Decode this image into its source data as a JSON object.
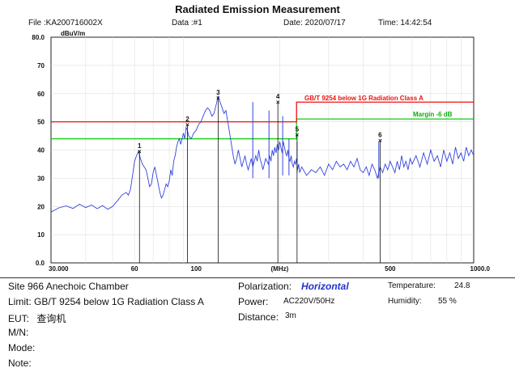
{
  "header": {
    "title": "Radiated Emission Measurement",
    "file": "File :KA200716002X",
    "data": "Data :#1",
    "date": "Date: 2020/07/17",
    "time": "Time: 14:42:54"
  },
  "info": {
    "site": "Site  966 Anechoic Chamber",
    "limit": "Limit:  GB/T 9254 below 1G Radiation Class A",
    "eut_label": "EUT:",
    "eut_value": "查询机",
    "mn": "M/N:",
    "mode": "Mode:",
    "note": "Note:",
    "polarization_label": "Polarization:",
    "polarization_value": "Horizontal",
    "power_label": "Power:",
    "power_value": "AC220V/50Hz",
    "distance_label": "Distance:",
    "distance_value": "3m",
    "temperature_label": "Temperature:",
    "temperature_value": "24.8",
    "humidity_label": "Humidity:",
    "humidity_value": "55 %"
  },
  "colors": {
    "trace": "#3344dd",
    "limit": "#ee1111",
    "margin": "#11cc11",
    "marker": "#111111"
  },
  "chart_data": {
    "type": "line",
    "xscale": "log",
    "xlim": [
      30,
      1000
    ],
    "ylim": [
      0,
      80
    ],
    "yunit": "dBuV/m",
    "xunit": "(MHz)",
    "xticks": [
      {
        "v": 30,
        "t": "30.000"
      },
      {
        "v": 60,
        "t": "60"
      },
      {
        "v": 100,
        "t": "100"
      },
      {
        "v": 200,
        "t": "(MHz)"
      },
      {
        "v": 500,
        "t": "500"
      },
      {
        "v": 1000,
        "t": "1000.0"
      }
    ],
    "yticks": [
      {
        "v": 80,
        "t": "80.0"
      },
      {
        "v": 70,
        "t": "70"
      },
      {
        "v": 60,
        "t": "60"
      },
      {
        "v": 50,
        "t": "50"
      },
      {
        "v": 40,
        "t": "40"
      },
      {
        "v": 30,
        "t": "30"
      },
      {
        "v": 20,
        "t": "20"
      },
      {
        "v": 10,
        "t": "10"
      },
      {
        "v": 0,
        "t": "0.0"
      }
    ],
    "limit_line": {
      "label": "GB/T 9254 below 1G Radiation Class A",
      "segments": [
        [
          30,
          230,
          50
        ],
        [
          230,
          1000,
          57
        ]
      ]
    },
    "margin_line": {
      "label": "Margin -6 dB",
      "segments": [
        [
          30,
          230,
          44
        ],
        [
          230,
          1000,
          51
        ]
      ]
    },
    "series": [
      {
        "points": [
          [
            30,
            18
          ],
          [
            32,
            19.5
          ],
          [
            34,
            20.2
          ],
          [
            36,
            19.3
          ],
          [
            38,
            20.8
          ],
          [
            40,
            19.6
          ],
          [
            42,
            20.5
          ],
          [
            44,
            19.2
          ],
          [
            46,
            20.3
          ],
          [
            48,
            19
          ],
          [
            50,
            20
          ],
          [
            52,
            22
          ],
          [
            54,
            24
          ],
          [
            56,
            25
          ],
          [
            57,
            24
          ],
          [
            58,
            26
          ],
          [
            59,
            31
          ],
          [
            60,
            36
          ],
          [
            61,
            38
          ],
          [
            62,
            39.5
          ],
          [
            63,
            37
          ],
          [
            64,
            35
          ],
          [
            65,
            34
          ],
          [
            66,
            33
          ],
          [
            67,
            30
          ],
          [
            68,
            27
          ],
          [
            69,
            28
          ],
          [
            70,
            32
          ],
          [
            71,
            34
          ],
          [
            72,
            31
          ],
          [
            73,
            28
          ],
          [
            74,
            25
          ],
          [
            75,
            23
          ],
          [
            76,
            24
          ],
          [
            77,
            26
          ],
          [
            78,
            28
          ],
          [
            79,
            27
          ],
          [
            80,
            29
          ],
          [
            81,
            33
          ],
          [
            82,
            31
          ],
          [
            83,
            36
          ],
          [
            84,
            38
          ],
          [
            85,
            41
          ],
          [
            86,
            43
          ],
          [
            87,
            44
          ],
          [
            88,
            42
          ],
          [
            90,
            46
          ],
          [
            91,
            44
          ],
          [
            92,
            48
          ],
          [
            93,
            47
          ],
          [
            94,
            45
          ],
          [
            96,
            44
          ],
          [
            98,
            46
          ],
          [
            100,
            47
          ],
          [
            102,
            49
          ],
          [
            104,
            50
          ],
          [
            106,
            52
          ],
          [
            108,
            54
          ],
          [
            110,
            55
          ],
          [
            112,
            54
          ],
          [
            114,
            52
          ],
          [
            116,
            53
          ],
          [
            118,
            56
          ],
          [
            120,
            59
          ],
          [
            122,
            57
          ],
          [
            124,
            55
          ],
          [
            126,
            53
          ],
          [
            128,
            54
          ],
          [
            130,
            50
          ],
          [
            132,
            46
          ],
          [
            134,
            42
          ],
          [
            136,
            38
          ],
          [
            138,
            35
          ],
          [
            140,
            37
          ],
          [
            142,
            40
          ],
          [
            144,
            37
          ],
          [
            146,
            34
          ],
          [
            148,
            36
          ],
          [
            150,
            38
          ],
          [
            152,
            35
          ],
          [
            154,
            33
          ],
          [
            156,
            35
          ],
          [
            158,
            37
          ],
          [
            160,
            34
          ],
          [
            162,
            36
          ],
          [
            164,
            38
          ],
          [
            166,
            36
          ],
          [
            168,
            40
          ],
          [
            170,
            37
          ],
          [
            172,
            35
          ],
          [
            174,
            33
          ],
          [
            176,
            35
          ],
          [
            178,
            37
          ],
          [
            180,
            36
          ],
          [
            182,
            35
          ],
          [
            184,
            38
          ],
          [
            186,
            36
          ],
          [
            188,
            40
          ],
          [
            190,
            38
          ],
          [
            192,
            41
          ],
          [
            194,
            39
          ],
          [
            196,
            42
          ],
          [
            198,
            40
          ],
          [
            200,
            43
          ],
          [
            202,
            41
          ],
          [
            204,
            39
          ],
          [
            206,
            43
          ],
          [
            208,
            41
          ],
          [
            210,
            39
          ],
          [
            212,
            38
          ],
          [
            214,
            40
          ],
          [
            216,
            37
          ],
          [
            218,
            36
          ],
          [
            220,
            38
          ],
          [
            222,
            35
          ],
          [
            224,
            34
          ],
          [
            226,
            36
          ],
          [
            228,
            35
          ],
          [
            230,
            37
          ],
          [
            232,
            33
          ],
          [
            234,
            35
          ],
          [
            236,
            32
          ],
          [
            240,
            34
          ],
          [
            250,
            31
          ],
          [
            260,
            33
          ],
          [
            270,
            32
          ],
          [
            280,
            34
          ],
          [
            290,
            31
          ],
          [
            300,
            35
          ],
          [
            310,
            33
          ],
          [
            320,
            36
          ],
          [
            330,
            34
          ],
          [
            340,
            35
          ],
          [
            350,
            33
          ],
          [
            360,
            36
          ],
          [
            370,
            34
          ],
          [
            380,
            37
          ],
          [
            390,
            33
          ],
          [
            400,
            32
          ],
          [
            410,
            34
          ],
          [
            420,
            31
          ],
          [
            430,
            35
          ],
          [
            440,
            33
          ],
          [
            450,
            30
          ],
          [
            460,
            34
          ],
          [
            470,
            32
          ],
          [
            480,
            35
          ],
          [
            490,
            33
          ],
          [
            500,
            36
          ],
          [
            510,
            34
          ],
          [
            520,
            32
          ],
          [
            530,
            36
          ],
          [
            540,
            33
          ],
          [
            550,
            38
          ],
          [
            560,
            34
          ],
          [
            570,
            36
          ],
          [
            580,
            33
          ],
          [
            590,
            37
          ],
          [
            600,
            35
          ],
          [
            620,
            38
          ],
          [
            640,
            34
          ],
          [
            660,
            39
          ],
          [
            680,
            35
          ],
          [
            700,
            40
          ],
          [
            720,
            36
          ],
          [
            740,
            38
          ],
          [
            760,
            34
          ],
          [
            780,
            40
          ],
          [
            800,
            36
          ],
          [
            820,
            39
          ],
          [
            840,
            35
          ],
          [
            860,
            41
          ],
          [
            880,
            37
          ],
          [
            900,
            39
          ],
          [
            920,
            36
          ],
          [
            940,
            41
          ],
          [
            960,
            38
          ],
          [
            980,
            40
          ],
          [
            1000,
            38
          ]
        ]
      }
    ],
    "spikes": [
      [
        160,
        30,
        57
      ],
      [
        183,
        30,
        54
      ],
      [
        205,
        31,
        52
      ],
      [
        216,
        31,
        44
      ],
      [
        231,
        32,
        43
      ],
      [
        455,
        30,
        43
      ]
    ],
    "markers": [
      {
        "label": "1",
        "x": 62.5,
        "y": 39.5
      },
      {
        "label": "2",
        "x": 93,
        "y": 49
      },
      {
        "label": "3",
        "x": 120,
        "y": 58.5
      },
      {
        "label": "4",
        "x": 197,
        "y": 57
      },
      {
        "label": "5",
        "x": 231,
        "y": 45.5
      },
      {
        "label": "6",
        "x": 460,
        "y": 43.5
      }
    ]
  }
}
